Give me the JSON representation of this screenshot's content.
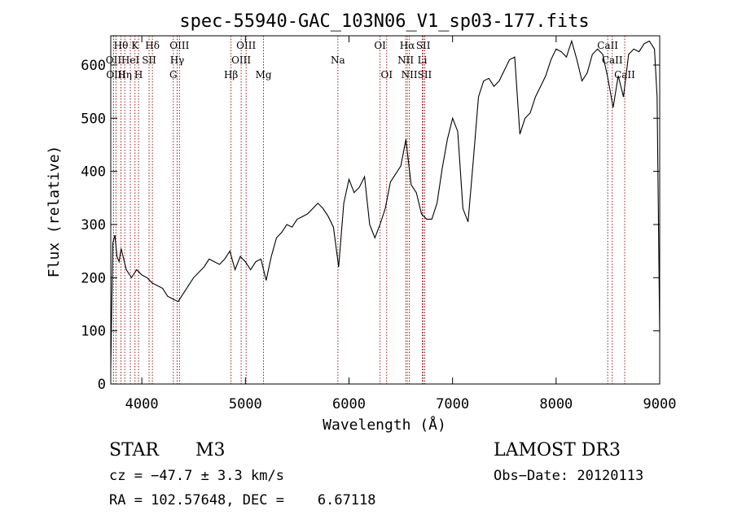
{
  "chart_data": {
    "type": "line",
    "title": "spec-55940-GAC_103N06_V1_sp03-177.fits",
    "xlabel": "Wavelength (Å)",
    "ylabel": "Flux (relative)",
    "xlim": [
      3700,
      9000
    ],
    "ylim": [
      0,
      655
    ],
    "x_ticks": [
      4000,
      5000,
      6000,
      7000,
      8000,
      9000
    ],
    "y_ticks": [
      0,
      100,
      200,
      300,
      400,
      500,
      600
    ],
    "grid": false,
    "series": [
      {
        "values": [
          [
            3700,
            30
          ],
          [
            3720,
            265
          ],
          [
            3740,
            280
          ],
          [
            3760,
            240
          ],
          [
            3780,
            230
          ],
          [
            3800,
            255
          ],
          [
            3850,
            215
          ],
          [
            3900,
            200
          ],
          [
            3950,
            215
          ],
          [
            4000,
            205
          ],
          [
            4050,
            200
          ],
          [
            4100,
            190
          ],
          [
            4150,
            185
          ],
          [
            4200,
            180
          ],
          [
            4250,
            165
          ],
          [
            4300,
            160
          ],
          [
            4350,
            155
          ],
          [
            4400,
            170
          ],
          [
            4450,
            185
          ],
          [
            4500,
            200
          ],
          [
            4550,
            210
          ],
          [
            4600,
            220
          ],
          [
            4650,
            235
          ],
          [
            4700,
            230
          ],
          [
            4750,
            225
          ],
          [
            4800,
            235
          ],
          [
            4850,
            250
          ],
          [
            4900,
            215
          ],
          [
            4950,
            240
          ],
          [
            5000,
            230
          ],
          [
            5050,
            215
          ],
          [
            5100,
            230
          ],
          [
            5150,
            235
          ],
          [
            5200,
            195
          ],
          [
            5250,
            240
          ],
          [
            5300,
            275
          ],
          [
            5350,
            285
          ],
          [
            5400,
            300
          ],
          [
            5450,
            295
          ],
          [
            5500,
            310
          ],
          [
            5550,
            315
          ],
          [
            5600,
            320
          ],
          [
            5650,
            330
          ],
          [
            5700,
            340
          ],
          [
            5750,
            330
          ],
          [
            5800,
            315
          ],
          [
            5850,
            295
          ],
          [
            5900,
            220
          ],
          [
            5950,
            340
          ],
          [
            6000,
            385
          ],
          [
            6050,
            360
          ],
          [
            6100,
            370
          ],
          [
            6150,
            390
          ],
          [
            6200,
            300
          ],
          [
            6250,
            275
          ],
          [
            6300,
            300
          ],
          [
            6350,
            330
          ],
          [
            6400,
            380
          ],
          [
            6450,
            395
          ],
          [
            6500,
            410
          ],
          [
            6550,
            460
          ],
          [
            6600,
            375
          ],
          [
            6650,
            360
          ],
          [
            6700,
            320
          ],
          [
            6750,
            310
          ],
          [
            6800,
            310
          ],
          [
            6850,
            340
          ],
          [
            6900,
            405
          ],
          [
            6950,
            460
          ],
          [
            7000,
            500
          ],
          [
            7050,
            475
          ],
          [
            7100,
            330
          ],
          [
            7150,
            305
          ],
          [
            7200,
            420
          ],
          [
            7250,
            540
          ],
          [
            7300,
            570
          ],
          [
            7350,
            575
          ],
          [
            7400,
            560
          ],
          [
            7450,
            570
          ],
          [
            7500,
            590
          ],
          [
            7550,
            610
          ],
          [
            7600,
            615
          ],
          [
            7650,
            470
          ],
          [
            7700,
            500
          ],
          [
            7750,
            510
          ],
          [
            7800,
            540
          ],
          [
            7850,
            560
          ],
          [
            7900,
            580
          ],
          [
            7950,
            610
          ],
          [
            8000,
            630
          ],
          [
            8050,
            625
          ],
          [
            8100,
            615
          ],
          [
            8150,
            645
          ],
          [
            8200,
            610
          ],
          [
            8250,
            570
          ],
          [
            8300,
            585
          ],
          [
            8350,
            620
          ],
          [
            8400,
            630
          ],
          [
            8450,
            620
          ],
          [
            8500,
            575
          ],
          [
            8550,
            520
          ],
          [
            8600,
            580
          ],
          [
            8650,
            540
          ],
          [
            8700,
            620
          ],
          [
            8750,
            630
          ],
          [
            8800,
            625
          ],
          [
            8850,
            640
          ],
          [
            8900,
            645
          ],
          [
            8950,
            630
          ],
          [
            8975,
            540
          ],
          [
            9000,
            95
          ]
        ]
      }
    ],
    "lines": [
      {
        "label": "Hθ",
        "x": 3798,
        "row": 1
      },
      {
        "label": "K",
        "x": 3934,
        "row": 1
      },
      {
        "label": "Hδ",
        "x": 4102,
        "row": 1
      },
      {
        "label": "OIII",
        "x": 4363,
        "row": 1
      },
      {
        "label": "OIII",
        "x": 5007,
        "row": 1
      },
      {
        "label": "OI",
        "x": 6300,
        "row": 1
      },
      {
        "label": "Hα",
        "x": 6563,
        "row": 1
      },
      {
        "label": "SII",
        "x": 6717,
        "row": 1
      },
      {
        "label": "CaII",
        "x": 8498,
        "row": 1
      },
      {
        "label": "OII",
        "x": 3727,
        "row": 2
      },
      {
        "label": "HeI",
        "x": 3889,
        "row": 2
      },
      {
        "label": "SII",
        "x": 4070,
        "row": 2
      },
      {
        "label": "Hγ",
        "x": 4341,
        "row": 2
      },
      {
        "label": "OIII",
        "x": 4959,
        "row": 2
      },
      {
        "label": "Na",
        "x": 5893,
        "row": 2
      },
      {
        "label": "NII",
        "x": 6548,
        "row": 2
      },
      {
        "label": "Li",
        "x": 6708,
        "row": 2
      },
      {
        "label": "CaII",
        "x": 8542,
        "row": 2
      },
      {
        "label": "OIII",
        "x": 3750,
        "row": 3
      },
      {
        "label": "Hη",
        "x": 3835,
        "row": 3
      },
      {
        "label": "H",
        "x": 3968,
        "row": 3
      },
      {
        "label": "G",
        "x": 4304,
        "row": 3
      },
      {
        "label": "Hβ",
        "x": 4861,
        "row": 3
      },
      {
        "label": "Mg",
        "x": 5175,
        "row": 3
      },
      {
        "label": "OI",
        "x": 6364,
        "row": 3
      },
      {
        "label": "NII",
        "x": 6583,
        "row": 3
      },
      {
        "label": "SII",
        "x": 6731,
        "row": 3
      },
      {
        "label": "CaII",
        "x": 8662,
        "row": 3
      }
    ]
  },
  "info": {
    "class": "STAR",
    "subclass": "M3",
    "survey": "LAMOST DR3",
    "cz": "cz = −47.7 ± 3.3 km/s",
    "obs_date": "Obs−Date: 20120113",
    "radec": "RA = 102.57648, DEC =    6.67118"
  }
}
